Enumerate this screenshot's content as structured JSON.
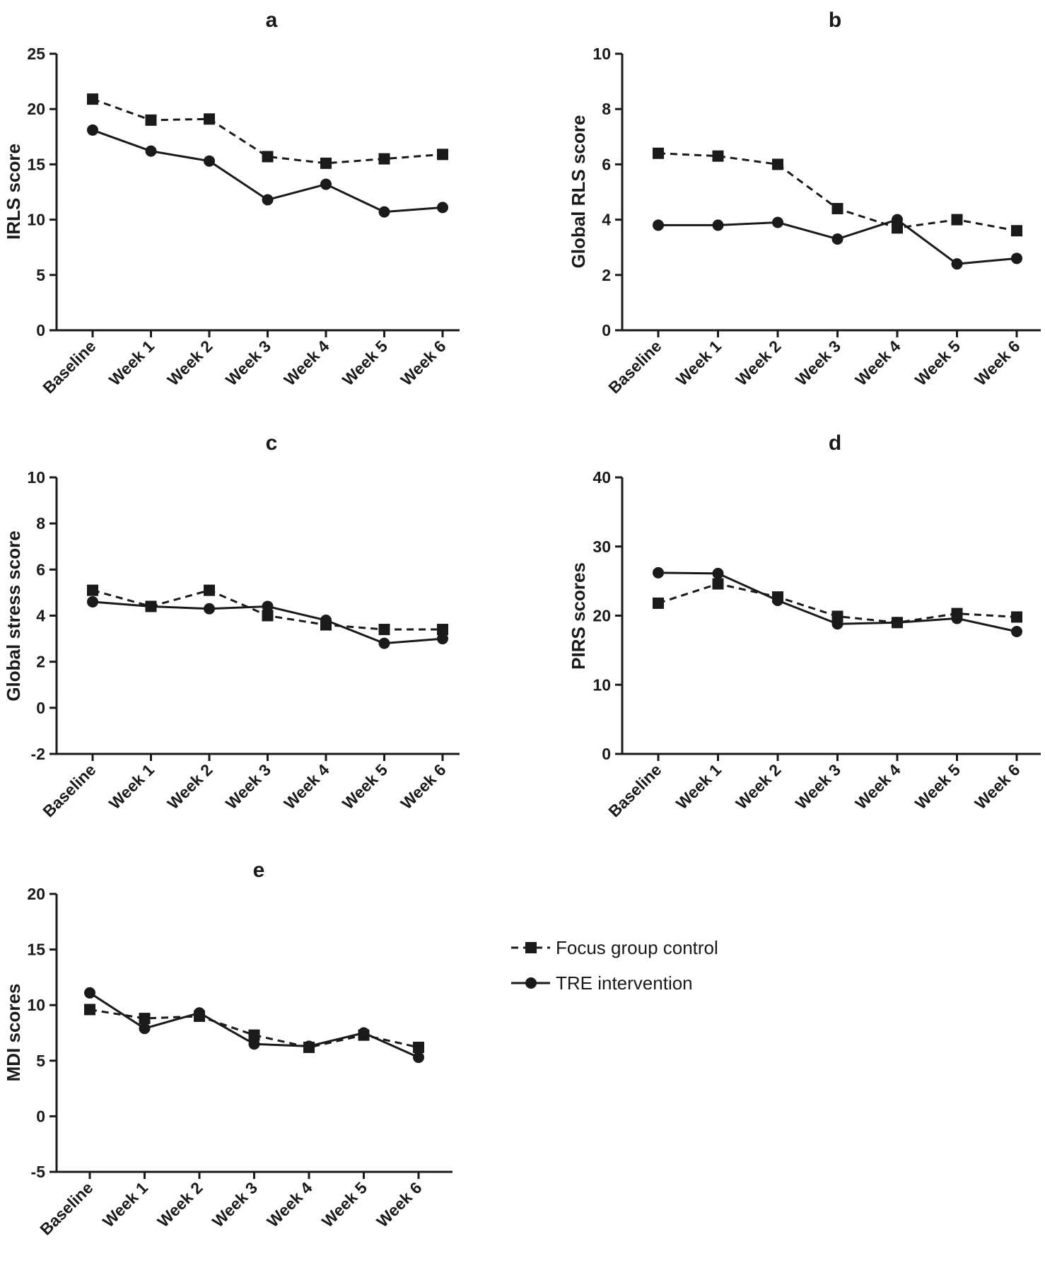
{
  "colors": {
    "ink": "#1a1a1a",
    "background": "#ffffff"
  },
  "legend": {
    "items": [
      {
        "label": "Focus group control",
        "line": "dashed",
        "marker": "square"
      },
      {
        "label": "TRE intervention",
        "line": "solid",
        "marker": "circle"
      }
    ]
  },
  "chart_data": [
    {
      "type": "line",
      "title": "a",
      "ylabel": "IRLS score",
      "xlabel": "",
      "categories": [
        "Baseline",
        "Week 1",
        "Week 2",
        "Week 3",
        "Week 4",
        "Week 5",
        "Week 6"
      ],
      "ylim": [
        0,
        25
      ],
      "yticks": [
        0,
        5,
        10,
        15,
        20,
        25
      ],
      "series": [
        {
          "name": "Focus group control",
          "values": [
            20.9,
            19.0,
            19.1,
            15.7,
            15.1,
            15.5,
            15.9
          ]
        },
        {
          "name": "TRE intervention",
          "values": [
            18.1,
            16.2,
            15.3,
            11.8,
            13.2,
            10.7,
            11.1
          ]
        }
      ]
    },
    {
      "type": "line",
      "title": "b",
      "ylabel": "Global RLS score",
      "xlabel": "",
      "categories": [
        "Baseline",
        "Week 1",
        "Week 2",
        "Week 3",
        "Week 4",
        "Week 5",
        "Week 6"
      ],
      "ylim": [
        0,
        10
      ],
      "yticks": [
        0,
        2,
        4,
        6,
        8,
        10
      ],
      "series": [
        {
          "name": "Focus group control",
          "values": [
            6.4,
            6.3,
            6.0,
            4.4,
            3.7,
            4.0,
            3.6
          ]
        },
        {
          "name": "TRE intervention",
          "values": [
            3.8,
            3.8,
            3.9,
            3.3,
            4.0,
            2.4,
            2.6
          ]
        }
      ]
    },
    {
      "type": "line",
      "title": "c",
      "ylabel": "Global stress score",
      "xlabel": "",
      "categories": [
        "Baseline",
        "Week 1",
        "Week 2",
        "Week 3",
        "Week 4",
        "Week 5",
        "Week 6"
      ],
      "ylim": [
        -2,
        10
      ],
      "yticks": [
        -2,
        0,
        2,
        4,
        6,
        8,
        10
      ],
      "series": [
        {
          "name": "Focus group control",
          "values": [
            5.1,
            4.4,
            5.1,
            4.0,
            3.6,
            3.4,
            3.4
          ]
        },
        {
          "name": "TRE intervention",
          "values": [
            4.6,
            4.4,
            4.3,
            4.4,
            3.8,
            2.8,
            3.0
          ]
        }
      ]
    },
    {
      "type": "line",
      "title": "d",
      "ylabel": "PIRS scores",
      "xlabel": "",
      "categories": [
        "Baseline",
        "Week 1",
        "Week 2",
        "Week 3",
        "Week 4",
        "Week 5",
        "Week 6"
      ],
      "ylim": [
        0,
        40
      ],
      "yticks": [
        0,
        10,
        20,
        30,
        40
      ],
      "series": [
        {
          "name": "Focus group control",
          "values": [
            21.8,
            24.6,
            22.7,
            19.9,
            19.0,
            20.3,
            19.8
          ]
        },
        {
          "name": "TRE intervention",
          "values": [
            26.2,
            26.1,
            22.2,
            18.8,
            19.0,
            19.6,
            17.7
          ]
        }
      ]
    },
    {
      "type": "line",
      "title": "e",
      "ylabel": "MDI scores",
      "xlabel": "",
      "categories": [
        "Baseline",
        "Week 1",
        "Week 2",
        "Week 3",
        "Week 4",
        "Week 5",
        "Week 6"
      ],
      "ylim": [
        -5,
        20
      ],
      "yticks": [
        -5,
        0,
        5,
        10,
        15,
        20
      ],
      "series": [
        {
          "name": "Focus group control",
          "values": [
            9.6,
            8.8,
            9.0,
            7.3,
            6.2,
            7.3,
            6.2
          ]
        },
        {
          "name": "TRE intervention",
          "values": [
            11.1,
            7.9,
            9.3,
            6.5,
            6.3,
            7.5,
            5.3
          ]
        }
      ]
    }
  ]
}
